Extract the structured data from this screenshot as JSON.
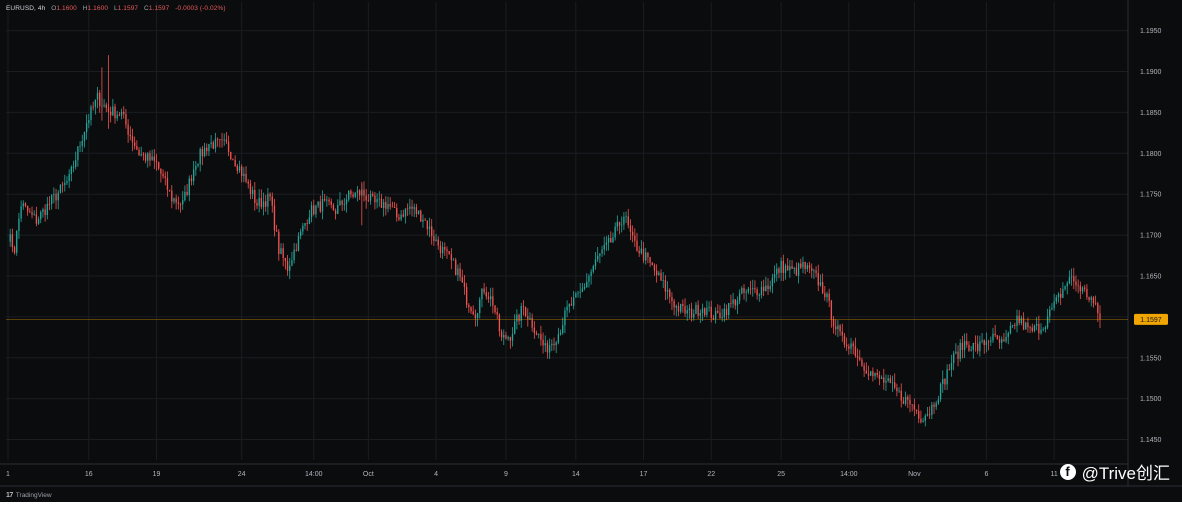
{
  "header": {
    "symbol_label": "EURUSD, 4h",
    "open_key": "O",
    "open_value": "1.1600",
    "high_key": "H",
    "high_value": "1.1600",
    "low_key": "L",
    "low_value": "1.1597",
    "close_key": "C",
    "close_value": "1.1597",
    "change_text": "-0.0003 (-0.02%)"
  },
  "footer": {
    "logo_icon": "tradingview-logo-icon",
    "brand": "TradingView"
  },
  "watermark": {
    "icon": "facebook-icon",
    "text": "@Trive创汇"
  },
  "colors": {
    "background": "#0b0c0e",
    "grid": "#1a1d22",
    "up": "#26a69a",
    "down": "#ef5350",
    "price_line": "#f0a500",
    "axis_text": "#b2b5be"
  },
  "chart_data": {
    "type": "candlestick",
    "title": "EURUSD, 4h",
    "xlabel": "",
    "ylabel": "",
    "ylim": [
      1.1425,
      1.1985
    ],
    "y_ticks": [
      1.145,
      1.15,
      1.155,
      1.16,
      1.165,
      1.17,
      1.175,
      1.18,
      1.185,
      1.19,
      1.195
    ],
    "y_tick_labels": [
      "1.1450",
      "1.1500",
      "1.1550",
      "1.1600",
      "1.1650",
      "1.1700",
      "1.1750",
      "1.1800",
      "1.1850",
      "1.1900",
      "1.1950"
    ],
    "x_tick_labels": [
      "1",
      "16",
      "19",
      "24",
      "14:00",
      "Oct",
      "4",
      "9",
      "14",
      "17",
      "22",
      "25",
      "14:00",
      "Nov",
      "6",
      "11"
    ],
    "x_tick_positions": [
      0,
      37,
      68,
      107,
      140,
      165,
      196,
      228,
      260,
      291,
      322,
      354,
      385,
      415,
      448,
      479
    ],
    "last_price": 1.1597,
    "last_price_label": "1.1597",
    "grid": true,
    "anchors": [
      [
        0,
        1.17
      ],
      [
        3,
        1.1683
      ],
      [
        6,
        1.1738
      ],
      [
        10,
        1.1725
      ],
      [
        13,
        1.1718
      ],
      [
        20,
        1.1742
      ],
      [
        28,
        1.1768
      ],
      [
        36,
        1.1838
      ],
      [
        41,
        1.1868
      ],
      [
        46,
        1.1852
      ],
      [
        52,
        1.1848
      ],
      [
        55,
        1.1828
      ],
      [
        60,
        1.18
      ],
      [
        68,
        1.1787
      ],
      [
        75,
        1.1745
      ],
      [
        80,
        1.1738
      ],
      [
        86,
        1.179
      ],
      [
        92,
        1.1812
      ],
      [
        100,
        1.181
      ],
      [
        106,
        1.1782
      ],
      [
        110,
        1.176
      ],
      [
        114,
        1.1738
      ],
      [
        120,
        1.1745
      ],
      [
        124,
        1.1682
      ],
      [
        128,
        1.166
      ],
      [
        132,
        1.1688
      ],
      [
        138,
        1.1728
      ],
      [
        144,
        1.1738
      ],
      [
        150,
        1.173
      ],
      [
        156,
        1.1748
      ],
      [
        162,
        1.1752
      ],
      [
        168,
        1.1738
      ],
      [
        174,
        1.1738
      ],
      [
        178,
        1.1722
      ],
      [
        184,
        1.1734
      ],
      [
        190,
        1.1722
      ],
      [
        196,
        1.1692
      ],
      [
        202,
        1.167
      ],
      [
        206,
        1.1655
      ],
      [
        210,
        1.1622
      ],
      [
        214,
        1.1605
      ],
      [
        218,
        1.1635
      ],
      [
        222,
        1.1618
      ],
      [
        226,
        1.1572
      ],
      [
        230,
        1.1578
      ],
      [
        236,
        1.1612
      ],
      [
        242,
        1.1582
      ],
      [
        246,
        1.156
      ],
      [
        252,
        1.158
      ],
      [
        256,
        1.1608
      ],
      [
        262,
        1.1628
      ],
      [
        270,
        1.1672
      ],
      [
        276,
        1.1692
      ],
      [
        282,
        1.1725
      ],
      [
        286,
        1.1692
      ],
      [
        292,
        1.1672
      ],
      [
        298,
        1.1648
      ],
      [
        306,
        1.1612
      ],
      [
        312,
        1.1604
      ],
      [
        318,
        1.1612
      ],
      [
        324,
        1.16
      ],
      [
        330,
        1.1612
      ],
      [
        336,
        1.1628
      ],
      [
        342,
        1.1632
      ],
      [
        348,
        1.1638
      ],
      [
        354,
        1.1662
      ],
      [
        360,
        1.1655
      ],
      [
        364,
        1.1662
      ],
      [
        370,
        1.1648
      ],
      [
        374,
        1.163
      ],
      [
        378,
        1.1595
      ],
      [
        382,
        1.157
      ],
      [
        386,
        1.1568
      ],
      [
        390,
        1.1548
      ],
      [
        396,
        1.1528
      ],
      [
        402,
        1.152
      ],
      [
        408,
        1.1505
      ],
      [
        414,
        1.1492
      ],
      [
        418,
        1.1478
      ],
      [
        422,
        1.1485
      ],
      [
        428,
        1.1518
      ],
      [
        432,
        1.1545
      ],
      [
        438,
        1.1568
      ],
      [
        444,
        1.1562
      ],
      [
        450,
        1.1575
      ],
      [
        456,
        1.1565
      ],
      [
        462,
        1.1598
      ],
      [
        468,
        1.1582
      ],
      [
        474,
        1.159
      ],
      [
        480,
        1.1618
      ],
      [
        486,
        1.1648
      ],
      [
        490,
        1.1638
      ],
      [
        496,
        1.1622
      ],
      [
        500,
        1.1597
      ]
    ]
  }
}
